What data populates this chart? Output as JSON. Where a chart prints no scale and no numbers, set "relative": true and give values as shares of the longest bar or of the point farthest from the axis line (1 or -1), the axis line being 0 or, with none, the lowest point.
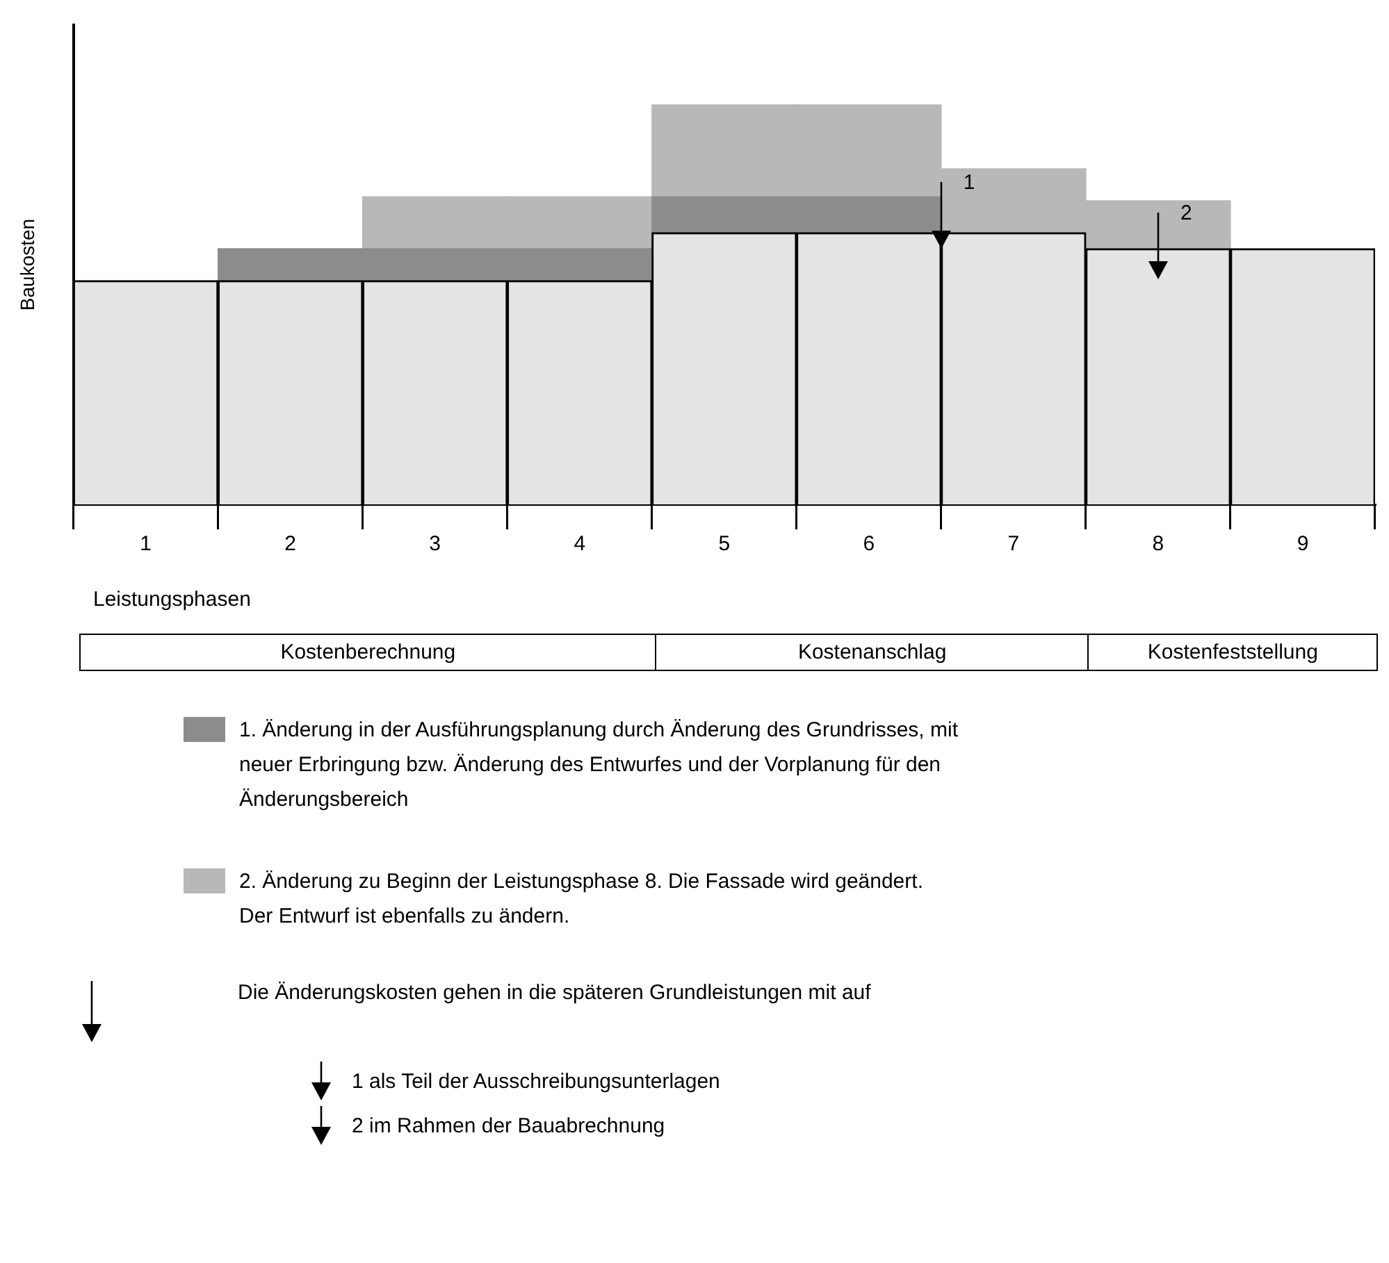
{
  "chart_data": {
    "type": "bar",
    "stacked": true,
    "relative": true,
    "ylabel": "Baukosten",
    "xlabel": "Leistungsphasen",
    "categories": [
      "1",
      "2",
      "3",
      "4",
      "5",
      "6",
      "7",
      "8",
      "9"
    ],
    "series": [
      {
        "color": "#e4e4e4",
        "values": [
          0.56,
          0.56,
          0.56,
          0.56,
          0.68,
          0.68,
          0.68,
          0.64,
          0.64
        ]
      },
      {
        "name": "1. Änderung in der Ausführungsplanung durch Änderung des Grundrisses, mit neuer Erbringung bzw. Änderung des Entwurfes und der Vorplanung für den Änderungsbereich",
        "color": "#8c8c8c",
        "values": [
          null,
          0.08,
          0.08,
          0.08,
          0.09,
          0.09,
          null,
          null,
          null
        ]
      },
      {
        "name": "2. Änderung zu Beginn der Leistungsphase 8. Die Fassade wird geändert. Der Entwurf ist ebenfalls zu ändern.",
        "color": "#b8b8b8",
        "values": [
          null,
          null,
          0.13,
          0.13,
          0.23,
          0.23,
          0.16,
          0.12,
          null
        ]
      }
    ],
    "legend": "bottom",
    "grid": false,
    "annotations": [
      "Kostenberechnung",
      "Kostenanschlag",
      "Kostenfeststellung",
      "Die Änderungskosten gehen in die späteren Grundleistungen mit auf",
      "1 als Teil der Ausschreibungsunterlagen",
      "2 im Rahmen der Bauabrechnung",
      "1",
      "2"
    ]
  }
}
